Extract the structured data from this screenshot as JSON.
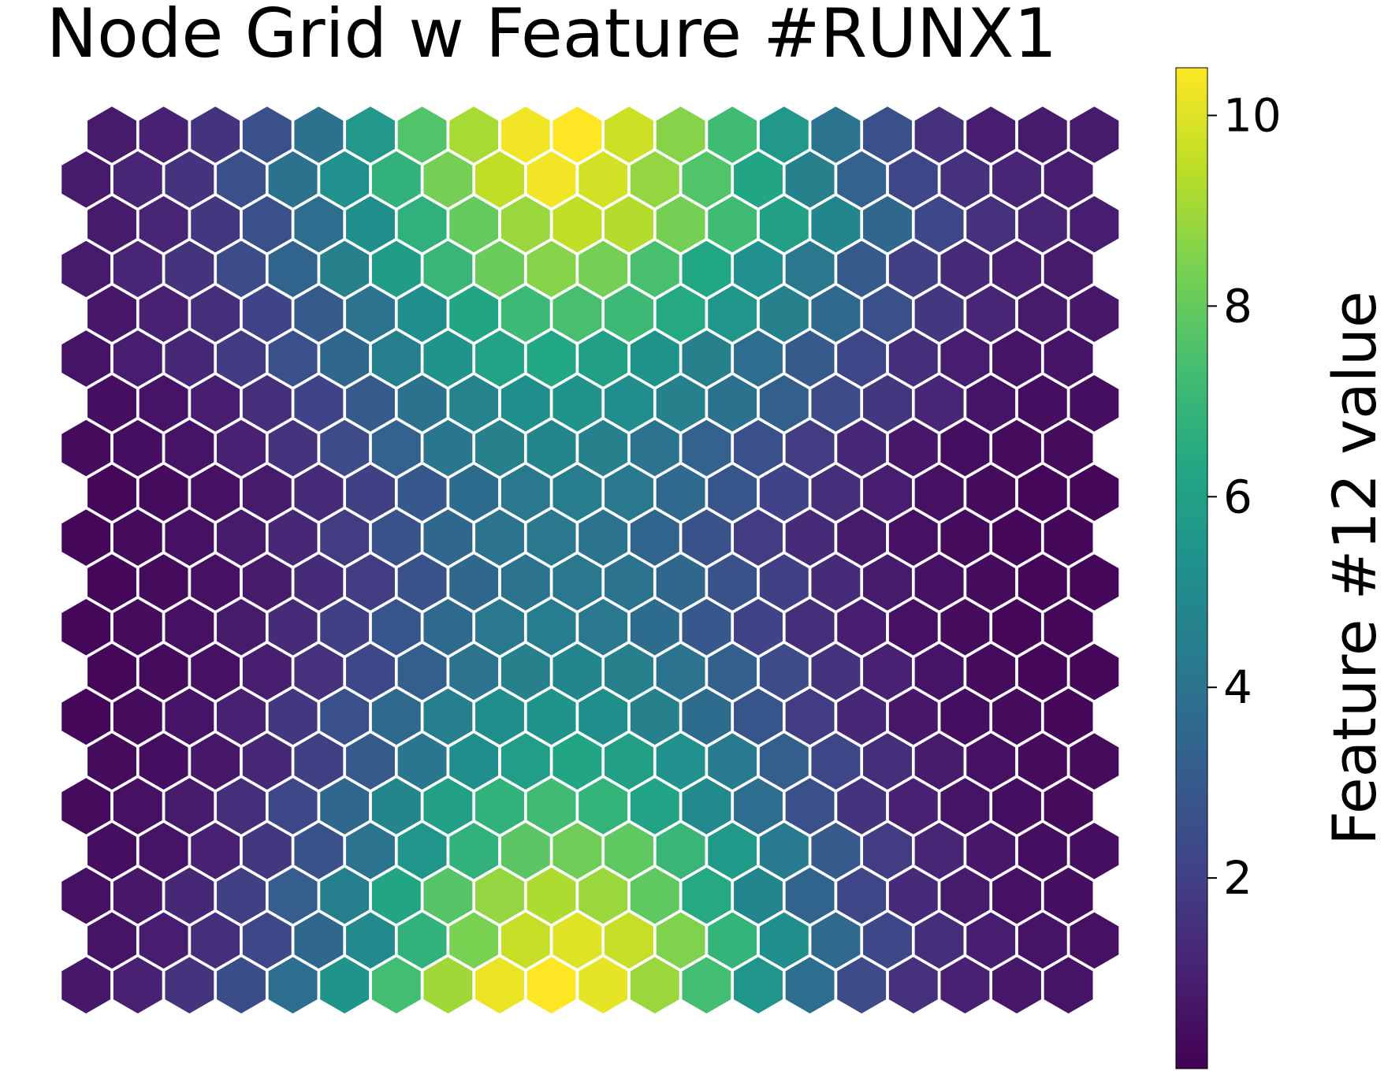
{
  "chart_data": {
    "type": "heatmap",
    "subtype": "hexagonal-grid",
    "title": "Node Grid w Feature #RUNX1",
    "colorbar": {
      "label": "Feature #12 value",
      "range": [
        0,
        10.5
      ],
      "ticks": [
        2,
        4,
        6,
        8,
        10
      ],
      "tick_labels": [
        "2",
        "4",
        "6",
        "8",
        "10"
      ],
      "colormap": "viridis",
      "placement": "right"
    },
    "grid": {
      "rows": 20,
      "cols": 20,
      "odd_rows_shifted": "left"
    },
    "values": [
      [
        0.8,
        1.0,
        1.6,
        2.6,
        3.9,
        5.6,
        7.6,
        9.1,
        10.3,
        10.5,
        9.7,
        8.6,
        7.2,
        5.6,
        4.0,
        2.6,
        1.5,
        0.9,
        0.8,
        0.8
      ],
      [
        0.8,
        1.1,
        1.6,
        2.6,
        3.9,
        5.3,
        6.8,
        8.3,
        9.5,
        10.3,
        9.8,
        8.8,
        7.6,
        6.2,
        4.6,
        3.3,
        2.2,
        1.5,
        1.1,
        0.9
      ],
      [
        0.8,
        1.1,
        1.7,
        2.6,
        3.8,
        5.2,
        6.7,
        8.0,
        8.9,
        9.5,
        9.3,
        8.3,
        7.2,
        6.0,
        4.8,
        3.5,
        2.3,
        1.5,
        1.1,
        0.9
      ],
      [
        0.8,
        1.1,
        1.6,
        2.4,
        3.4,
        4.6,
        5.8,
        7.0,
        8.1,
        8.6,
        8.3,
        7.4,
        6.3,
        5.3,
        4.2,
        3.0,
        2.0,
        1.3,
        1.0,
        0.8
      ],
      [
        0.7,
        1.0,
        1.4,
        2.1,
        3.0,
        4.0,
        5.1,
        6.2,
        7.1,
        7.4,
        7.1,
        6.4,
        5.5,
        4.6,
        3.6,
        2.6,
        1.7,
        1.1,
        0.8,
        0.7
      ],
      [
        0.6,
        0.9,
        1.2,
        1.8,
        2.6,
        3.5,
        4.5,
        5.4,
        6.1,
        6.3,
        6.0,
        5.4,
        4.6,
        3.8,
        3.0,
        2.2,
        1.4,
        0.9,
        0.6,
        0.6
      ],
      [
        0.4,
        0.6,
        0.9,
        1.4,
        2.1,
        3.0,
        3.9,
        4.7,
        5.2,
        5.4,
        5.1,
        4.6,
        3.9,
        3.2,
        2.4,
        1.7,
        1.1,
        0.6,
        0.4,
        0.4
      ],
      [
        0.3,
        0.4,
        0.6,
        1.0,
        1.6,
        2.4,
        3.3,
        4.1,
        4.6,
        4.8,
        4.6,
        4.0,
        3.3,
        2.6,
        1.9,
        1.2,
        0.7,
        0.4,
        0.3,
        0.3
      ],
      [
        0.2,
        0.3,
        0.5,
        0.8,
        1.3,
        2.0,
        2.9,
        3.7,
        4.2,
        4.4,
        4.2,
        3.6,
        2.8,
        2.1,
        1.4,
        0.9,
        0.5,
        0.3,
        0.2,
        0.2
      ],
      [
        0.2,
        0.3,
        0.5,
        0.8,
        1.2,
        1.9,
        2.7,
        3.5,
        4.0,
        4.2,
        4.0,
        3.4,
        2.7,
        1.9,
        1.3,
        0.8,
        0.5,
        0.3,
        0.2,
        0.2
      ],
      [
        0.2,
        0.3,
        0.5,
        0.8,
        1.3,
        1.9,
        2.7,
        3.5,
        4.0,
        4.2,
        4.0,
        3.5,
        2.7,
        2.0,
        1.3,
        0.8,
        0.5,
        0.3,
        0.2,
        0.2
      ],
      [
        0.2,
        0.3,
        0.5,
        0.8,
        1.3,
        2.0,
        2.8,
        3.6,
        4.2,
        4.4,
        4.2,
        3.7,
        2.9,
        2.1,
        1.4,
        0.9,
        0.5,
        0.3,
        0.2,
        0.2
      ],
      [
        0.2,
        0.3,
        0.5,
        0.9,
        1.5,
        2.3,
        3.2,
        4.0,
        4.6,
        4.8,
        4.6,
        4.0,
        3.2,
        2.4,
        1.6,
        1.0,
        0.6,
        0.3,
        0.2,
        0.2
      ],
      [
        0.2,
        0.3,
        0.6,
        1.0,
        1.7,
        2.6,
        3.6,
        4.5,
        5.2,
        5.4,
        5.2,
        4.6,
        3.7,
        2.8,
        1.9,
        1.2,
        0.7,
        0.4,
        0.3,
        0.2
      ],
      [
        0.3,
        0.4,
        0.7,
        1.2,
        2.0,
        3.0,
        4.1,
        5.2,
        5.9,
        6.2,
        6.0,
        5.3,
        4.3,
        3.2,
        2.2,
        1.4,
        0.8,
        0.5,
        0.3,
        0.3
      ],
      [
        0.3,
        0.5,
        0.8,
        1.4,
        2.3,
        3.5,
        4.8,
        6.0,
        6.8,
        7.2,
        6.9,
        6.1,
        5.0,
        3.8,
        2.6,
        1.6,
        1.0,
        0.6,
        0.4,
        0.3
      ],
      [
        0.4,
        0.6,
        1.0,
        1.7,
        2.7,
        4.0,
        5.5,
        6.8,
        7.8,
        8.2,
        7.9,
        7.0,
        5.7,
        4.3,
        3.0,
        1.9,
        1.1,
        0.7,
        0.4,
        0.4
      ],
      [
        0.5,
        0.7,
        1.2,
        2.0,
        3.1,
        4.5,
        6.2,
        7.7,
        8.8,
        9.2,
        8.9,
        7.9,
        6.4,
        4.8,
        3.4,
        2.2,
        1.3,
        0.8,
        0.5,
        0.4
      ],
      [
        0.6,
        0.9,
        1.4,
        2.3,
        3.5,
        5.0,
        6.8,
        8.4,
        9.6,
        10.0,
        9.6,
        8.5,
        6.9,
        5.2,
        3.6,
        2.3,
        1.4,
        0.9,
        0.6,
        0.5
      ],
      [
        0.7,
        1.0,
        1.6,
        2.5,
        3.8,
        5.4,
        7.3,
        9.0,
        10.2,
        10.5,
        10.1,
        8.9,
        7.3,
        5.5,
        3.8,
        2.4,
        1.5,
        1.0,
        0.7,
        0.6
      ]
    ]
  }
}
